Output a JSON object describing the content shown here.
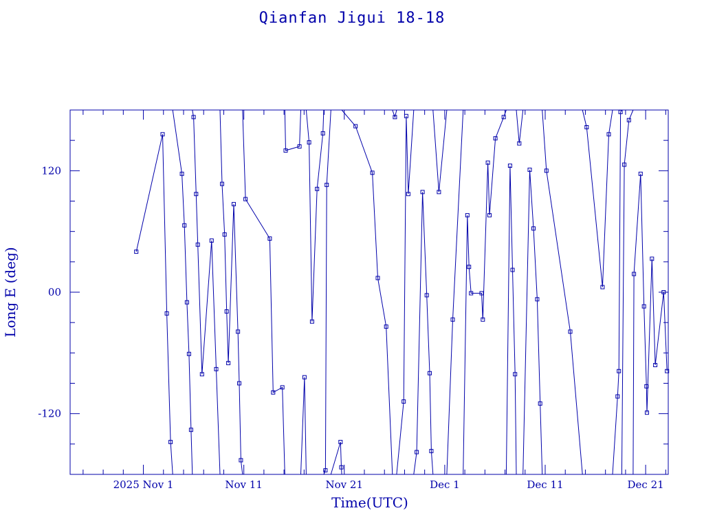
{
  "chart_data": {
    "type": "line",
    "title": "Qianfan Jigui 18-18",
    "xlabel": "Time(UTC)",
    "ylabel": "Long E (deg)",
    "x_ticks": [
      {
        "date": "2025-11-01",
        "label": "2025 Nov  1"
      },
      {
        "date": "2025-11-11",
        "label": "Nov 11"
      },
      {
        "date": "2025-11-21",
        "label": "Nov 21"
      },
      {
        "date": "2025-12-01",
        "label": "Dec  1"
      },
      {
        "date": "2025-12-11",
        "label": "Dec 11"
      },
      {
        "date": "2025-12-21",
        "label": "Dec 21"
      }
    ],
    "y_ticks": [
      {
        "value": 120,
        "label": "120"
      },
      {
        "value": 0,
        "label": "00"
      },
      {
        "value": -120,
        "label": "-120"
      }
    ],
    "xlim": [
      "2025-10-24T17:00",
      "2025-12-23T06:00"
    ],
    "ylim": [
      -180,
      180
    ],
    "color": "#0000aa",
    "series": [
      {
        "values": [
          {
            "t": "2025-10-31T07:00",
            "lon": 40
          },
          {
            "t": "2025-11-02T22:00",
            "lon": 156
          },
          {
            "t": "2025-11-03T08:00",
            "lon": -21
          },
          {
            "t": "2025-11-03T17:00",
            "lon": -148
          },
          {
            "t": "2025-11-03T22:00",
            "lon": -180,
            "break": true
          },
          {
            "t": "2025-11-03T22:00",
            "lon": 180
          },
          {
            "t": "2025-11-04T20:00",
            "lon": 117
          },
          {
            "t": "2025-11-05T02:00",
            "lon": 66
          },
          {
            "t": "2025-11-05T08:00",
            "lon": -10
          },
          {
            "t": "2025-11-05T13:00",
            "lon": -61
          },
          {
            "t": "2025-11-05T18:00",
            "lon": -136
          },
          {
            "t": "2025-11-05T21:00",
            "lon": -180,
            "break": true
          },
          {
            "t": "2025-11-05T21:00",
            "lon": 180
          },
          {
            "t": "2025-11-06T00:00",
            "lon": 173
          },
          {
            "t": "2025-11-06T06:00",
            "lon": 97
          },
          {
            "t": "2025-11-06T10:00",
            "lon": 47
          },
          {
            "t": "2025-11-06T20:00",
            "lon": -81
          },
          {
            "t": "2025-11-07T19:00",
            "lon": 51
          },
          {
            "t": "2025-11-08T06:00",
            "lon": -76
          },
          {
            "t": "2025-11-08T15:00",
            "lon": -180,
            "break": true
          },
          {
            "t": "2025-11-08T15:00",
            "lon": 180
          },
          {
            "t": "2025-11-08T20:00",
            "lon": 107
          },
          {
            "t": "2025-11-09T02:00",
            "lon": 57
          },
          {
            "t": "2025-11-09T07:00",
            "lon": -19
          },
          {
            "t": "2025-11-09T11:00",
            "lon": -70
          },
          {
            "t": "2025-11-10T00:00",
            "lon": 87
          },
          {
            "t": "2025-11-10T10:00",
            "lon": -39
          },
          {
            "t": "2025-11-10T13:00",
            "lon": -90
          },
          {
            "t": "2025-11-10T17:00",
            "lon": -166
          },
          {
            "t": "2025-11-10T21:00",
            "lon": -180,
            "break": true
          },
          {
            "t": "2025-11-10T21:00",
            "lon": 180
          },
          {
            "t": "2025-11-11T04:00",
            "lon": 92
          },
          {
            "t": "2025-11-13T14:00",
            "lon": 53
          },
          {
            "t": "2025-11-13T22:00",
            "lon": -99
          },
          {
            "t": "2025-11-14T20:00",
            "lon": -94
          },
          {
            "t": "2025-11-15T02:00",
            "lon": -180,
            "break": true
          },
          {
            "t": "2025-11-15T02:00",
            "lon": 180
          },
          {
            "t": "2025-11-15T04:00",
            "lon": 140
          },
          {
            "t": "2025-11-16T13:00",
            "lon": 144
          },
          {
            "t": "2025-11-16T16:00",
            "lon": 180,
            "break": true
          },
          {
            "t": "2025-11-16T16:00",
            "lon": -180
          },
          {
            "t": "2025-11-17T01:00",
            "lon": -84
          },
          {
            "t": "2025-11-17T05:00",
            "lon": -180,
            "break": true
          },
          {
            "t": "2025-11-17T05:00",
            "lon": 180
          },
          {
            "t": "2025-11-17T12:00",
            "lon": 148
          },
          {
            "t": "2025-11-17T19:00",
            "lon": -29
          },
          {
            "t": "2025-11-18T07:00",
            "lon": 102
          },
          {
            "t": "2025-11-18T21:00",
            "lon": 157
          },
          {
            "t": "2025-11-18T23:00",
            "lon": 180,
            "break": true
          },
          {
            "t": "2025-11-18T23:00",
            "lon": -180
          },
          {
            "t": "2025-11-19T03:00",
            "lon": -176
          },
          {
            "t": "2025-11-19T06:00",
            "lon": 106
          },
          {
            "t": "2025-11-19T16:00",
            "lon": 180,
            "break": true
          },
          {
            "t": "2025-11-19T16:00",
            "lon": -180
          },
          {
            "t": "2025-11-20T15:00",
            "lon": -148
          },
          {
            "t": "2025-11-20T17:00",
            "lon": -173
          },
          {
            "t": "2025-11-20T18:00",
            "lon": -180,
            "break": true
          },
          {
            "t": "2025-11-20T18:00",
            "lon": 180
          },
          {
            "t": "2025-11-22T03:00",
            "lon": 164
          },
          {
            "t": "2025-11-23T19:00",
            "lon": 118
          },
          {
            "t": "2025-11-24T08:00",
            "lon": 14
          },
          {
            "t": "2025-11-25T04:00",
            "lon": -34
          },
          {
            "t": "2025-11-25T19:00",
            "lon": -180,
            "break": true
          },
          {
            "t": "2025-11-25T19:00",
            "lon": 180
          },
          {
            "t": "2025-11-26T01:00",
            "lon": 173
          },
          {
            "t": "2025-11-26T05:00",
            "lon": 180,
            "break": true
          },
          {
            "t": "2025-11-26T05:00",
            "lon": -180
          },
          {
            "t": "2025-11-26T22:00",
            "lon": -108
          },
          {
            "t": "2025-11-27T04:00",
            "lon": 174
          },
          {
            "t": "2025-11-27T09:00",
            "lon": 97
          },
          {
            "t": "2025-11-27T22:00",
            "lon": 180,
            "break": true
          },
          {
            "t": "2025-11-27T22:00",
            "lon": -180
          },
          {
            "t": "2025-11-28T05:00",
            "lon": -158
          },
          {
            "t": "2025-11-28T19:00",
            "lon": 99
          },
          {
            "t": "2025-11-29T05:00",
            "lon": -3
          },
          {
            "t": "2025-11-29T12:00",
            "lon": -80
          },
          {
            "t": "2025-11-29T16:00",
            "lon": -157
          },
          {
            "t": "2025-11-29T20:00",
            "lon": -180,
            "break": true
          },
          {
            "t": "2025-11-29T20:00",
            "lon": 180
          },
          {
            "t": "2025-11-30T10:00",
            "lon": 99
          },
          {
            "t": "2025-12-01T05:00",
            "lon": 180,
            "break": true
          },
          {
            "t": "2025-12-01T05:00",
            "lon": -180
          },
          {
            "t": "2025-12-01T19:00",
            "lon": -27
          },
          {
            "t": "2025-12-02T20:00",
            "lon": 180,
            "break": true
          },
          {
            "t": "2025-12-02T20:00",
            "lon": -180
          },
          {
            "t": "2025-12-03T06:00",
            "lon": 76
          },
          {
            "t": "2025-12-03T10:00",
            "lon": 25
          },
          {
            "t": "2025-12-03T15:00",
            "lon": -1
          },
          {
            "t": "2025-12-04T16:00",
            "lon": -1
          },
          {
            "t": "2025-12-04T19:00",
            "lon": -27
          },
          {
            "t": "2025-12-05T07:00",
            "lon": 128
          },
          {
            "t": "2025-12-05T11:00",
            "lon": 76
          },
          {
            "t": "2025-12-06T01:00",
            "lon": 152
          },
          {
            "t": "2025-12-06T21:00",
            "lon": 173
          },
          {
            "t": "2025-12-07T03:00",
            "lon": 180,
            "break": true
          },
          {
            "t": "2025-12-07T03:00",
            "lon": -180
          },
          {
            "t": "2025-12-07T12:00",
            "lon": 125
          },
          {
            "t": "2025-12-07T18:00",
            "lon": 22
          },
          {
            "t": "2025-12-08T00:00",
            "lon": -81
          },
          {
            "t": "2025-12-08T03:00",
            "lon": -180,
            "break": true
          },
          {
            "t": "2025-12-08T03:00",
            "lon": 180
          },
          {
            "t": "2025-12-08T10:00",
            "lon": 147
          },
          {
            "t": "2025-12-08T19:00",
            "lon": 180,
            "break": true
          },
          {
            "t": "2025-12-08T19:00",
            "lon": -180
          },
          {
            "t": "2025-12-09T11:00",
            "lon": 121
          },
          {
            "t": "2025-12-09T20:00",
            "lon": 63
          },
          {
            "t": "2025-12-10T05:00",
            "lon": -7
          },
          {
            "t": "2025-12-10T12:00",
            "lon": -110
          },
          {
            "t": "2025-12-10T17:00",
            "lon": -180,
            "break": true
          },
          {
            "t": "2025-12-10T17:00",
            "lon": 180
          },
          {
            "t": "2025-12-11T03:00",
            "lon": 120
          },
          {
            "t": "2025-12-13T12:00",
            "lon": -39
          },
          {
            "t": "2025-12-14T17:00",
            "lon": -180,
            "break": true
          },
          {
            "t": "2025-12-14T17:00",
            "lon": 180
          },
          {
            "t": "2025-12-15T03:00",
            "lon": 163
          },
          {
            "t": "2025-12-16T17:00",
            "lon": 5
          },
          {
            "t": "2025-12-17T08:00",
            "lon": 156
          },
          {
            "t": "2025-12-17T17:00",
            "lon": 180,
            "break": true
          },
          {
            "t": "2025-12-17T17:00",
            "lon": -180
          },
          {
            "t": "2025-12-18T05:00",
            "lon": -103
          },
          {
            "t": "2025-12-18T08:00",
            "lon": -78
          },
          {
            "t": "2025-12-18T12:00",
            "lon": 178
          },
          {
            "t": "2025-12-18T15:00",
            "lon": 180,
            "break": true
          },
          {
            "t": "2025-12-18T15:00",
            "lon": -180
          },
          {
            "t": "2025-12-18T21:00",
            "lon": 126
          },
          {
            "t": "2025-12-19T08:00",
            "lon": 170
          },
          {
            "t": "2025-12-19T18:00",
            "lon": 180,
            "break": true
          },
          {
            "t": "2025-12-19T18:00",
            "lon": -180
          },
          {
            "t": "2025-12-19T20:00",
            "lon": 18
          },
          {
            "t": "2025-12-20T12:00",
            "lon": 117
          },
          {
            "t": "2025-12-20T20:00",
            "lon": -14
          },
          {
            "t": "2025-12-21T02:00",
            "lon": -93
          },
          {
            "t": "2025-12-21T03:00",
            "lon": -119
          },
          {
            "t": "2025-12-21T15:00",
            "lon": 33
          },
          {
            "t": "2025-12-21T23:00",
            "lon": -72
          },
          {
            "t": "2025-12-22T19:00",
            "lon": 0
          },
          {
            "t": "2025-12-23T03:00",
            "lon": -78
          }
        ]
      }
    ]
  }
}
